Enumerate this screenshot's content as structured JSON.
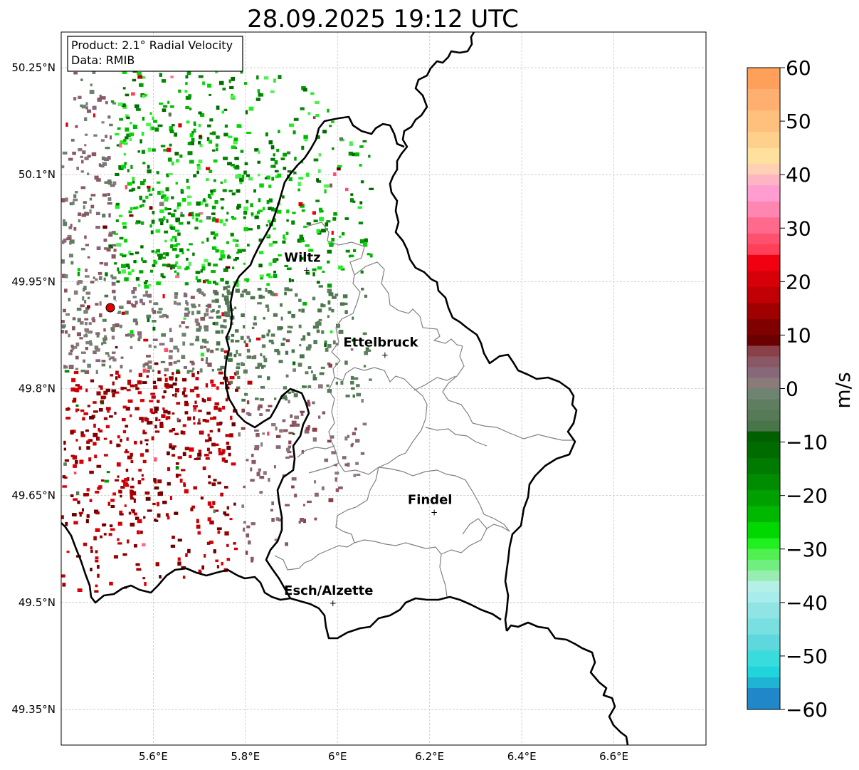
{
  "title": "28.09.2025 19:12 UTC",
  "info_box": {
    "product": "Product: 2.1° Radial Velocity",
    "data": "Data: RMIB"
  },
  "map": {
    "lon_range": [
      5.4,
      6.8
    ],
    "lat_range": [
      49.3,
      50.3
    ],
    "lon_ticks": [
      {
        "value": 5.6,
        "label": "5.6°E"
      },
      {
        "value": 5.8,
        "label": "5.8°E"
      },
      {
        "value": 6.0,
        "label": "6°E"
      },
      {
        "value": 6.2,
        "label": "6.2°E"
      },
      {
        "value": 6.4,
        "label": "6.4°E"
      },
      {
        "value": 6.6,
        "label": "6.6°E"
      }
    ],
    "lat_ticks": [
      {
        "value": 50.25,
        "label": "50.25°N"
      },
      {
        "value": 50.1,
        "label": "50.1°N"
      },
      {
        "value": 49.95,
        "label": "49.95°N"
      },
      {
        "value": 49.8,
        "label": "49.8°N"
      },
      {
        "value": 49.65,
        "label": "49.65°N"
      },
      {
        "value": 49.5,
        "label": "49.5°N"
      },
      {
        "value": 49.35,
        "label": "49.35°N"
      }
    ],
    "radar_site": {
      "lon": 5.505,
      "lat": 49.914
    },
    "cities": [
      {
        "name": "Wiltz",
        "lon": 5.933,
        "lat": 49.967
      },
      {
        "name": "Ettelbruck",
        "lon": 6.103,
        "lat": 49.848
      },
      {
        "name": "Findel",
        "lon": 6.21,
        "lat": 49.627
      },
      {
        "name": "Esch/Alzette",
        "lon": 5.99,
        "lat": 49.5
      }
    ]
  },
  "colorbar": {
    "label": "m/s",
    "min": -60,
    "max": 60,
    "ticks": [
      {
        "value": 60,
        "label": "60"
      },
      {
        "value": 50,
        "label": "50"
      },
      {
        "value": 40,
        "label": "40"
      },
      {
        "value": 30,
        "label": "30"
      },
      {
        "value": 20,
        "label": "20"
      },
      {
        "value": 10,
        "label": "10"
      },
      {
        "value": 0,
        "label": "0"
      },
      {
        "value": -10,
        "label": "−10"
      },
      {
        "value": -20,
        "label": "−20"
      },
      {
        "value": -30,
        "label": "−30"
      },
      {
        "value": -40,
        "label": "−40"
      },
      {
        "value": -50,
        "label": "−50"
      },
      {
        "value": -60,
        "label": "−60"
      }
    ],
    "stops": [
      {
        "from": 56,
        "to": 60,
        "color": "#ffa05a"
      },
      {
        "from": 52,
        "to": 56,
        "color": "#ffb070"
      },
      {
        "from": 48,
        "to": 52,
        "color": "#ffc07e"
      },
      {
        "from": 45,
        "to": 48,
        "color": "#ffd08c"
      },
      {
        "from": 42,
        "to": 45,
        "color": "#ffe09c"
      },
      {
        "from": 40,
        "to": 42,
        "color": "#ffd0b4"
      },
      {
        "from": 38,
        "to": 40,
        "color": "#ffb4c4"
      },
      {
        "from": 35,
        "to": 38,
        "color": "#ff9cd0"
      },
      {
        "from": 32,
        "to": 35,
        "color": "#ff86b0"
      },
      {
        "from": 29,
        "to": 32,
        "color": "#ff6a8c"
      },
      {
        "from": 27,
        "to": 29,
        "color": "#ff5070"
      },
      {
        "from": 25,
        "to": 27,
        "color": "#ff4058"
      },
      {
        "from": 22,
        "to": 25,
        "color": "#f00010"
      },
      {
        "from": 19,
        "to": 22,
        "color": "#d80008"
      },
      {
        "from": 16,
        "to": 19,
        "color": "#c00004"
      },
      {
        "from": 13,
        "to": 16,
        "color": "#a00000"
      },
      {
        "from": 10,
        "to": 13,
        "color": "#800000"
      },
      {
        "from": 8,
        "to": 10,
        "color": "#6a0000"
      },
      {
        "from": 6,
        "to": 8,
        "color": "#8a4048"
      },
      {
        "from": 4,
        "to": 6,
        "color": "#8a5864"
      },
      {
        "from": 2,
        "to": 4,
        "color": "#86687a"
      },
      {
        "from": 0,
        "to": 2,
        "color": "#8a7a7a"
      },
      {
        "from": -2,
        "to": 0,
        "color": "#6e8470"
      },
      {
        "from": -4,
        "to": -2,
        "color": "#5f7e5f"
      },
      {
        "from": -6,
        "to": -4,
        "color": "#557a55"
      },
      {
        "from": -8,
        "to": -6,
        "color": "#4a744a"
      },
      {
        "from": -10,
        "to": -8,
        "color": "#006000"
      },
      {
        "from": -13,
        "to": -10,
        "color": "#006c00"
      },
      {
        "from": -16,
        "to": -13,
        "color": "#007a00"
      },
      {
        "from": -19,
        "to": -16,
        "color": "#008c00"
      },
      {
        "from": -22,
        "to": -19,
        "color": "#00a000"
      },
      {
        "from": -25,
        "to": -22,
        "color": "#00b800"
      },
      {
        "from": -28,
        "to": -25,
        "color": "#00d800"
      },
      {
        "from": -30,
        "to": -28,
        "color": "#20f020"
      },
      {
        "from": -32,
        "to": -30,
        "color": "#50f050"
      },
      {
        "from": -34,
        "to": -32,
        "color": "#70ee80"
      },
      {
        "from": -36,
        "to": -34,
        "color": "#98eeb0"
      },
      {
        "from": -38,
        "to": -36,
        "color": "#b4f0e8"
      },
      {
        "from": -40,
        "to": -38,
        "color": "#a8ecec"
      },
      {
        "from": -43,
        "to": -40,
        "color": "#90e4e4"
      },
      {
        "from": -46,
        "to": -43,
        "color": "#78e0e0"
      },
      {
        "from": -49,
        "to": -46,
        "color": "#5ed8dc"
      },
      {
        "from": -52,
        "to": -49,
        "color": "#38dcdc"
      },
      {
        "from": -54,
        "to": -52,
        "color": "#20d4dc"
      },
      {
        "from": -56,
        "to": -54,
        "color": "#20b4d4"
      },
      {
        "from": -60,
        "to": -56,
        "color": "#2088c8"
      }
    ]
  },
  "colors": {
    "border": "#000000",
    "canton": "#808080",
    "grid": "#c8c8c8",
    "radar_marker": "#e00000"
  }
}
